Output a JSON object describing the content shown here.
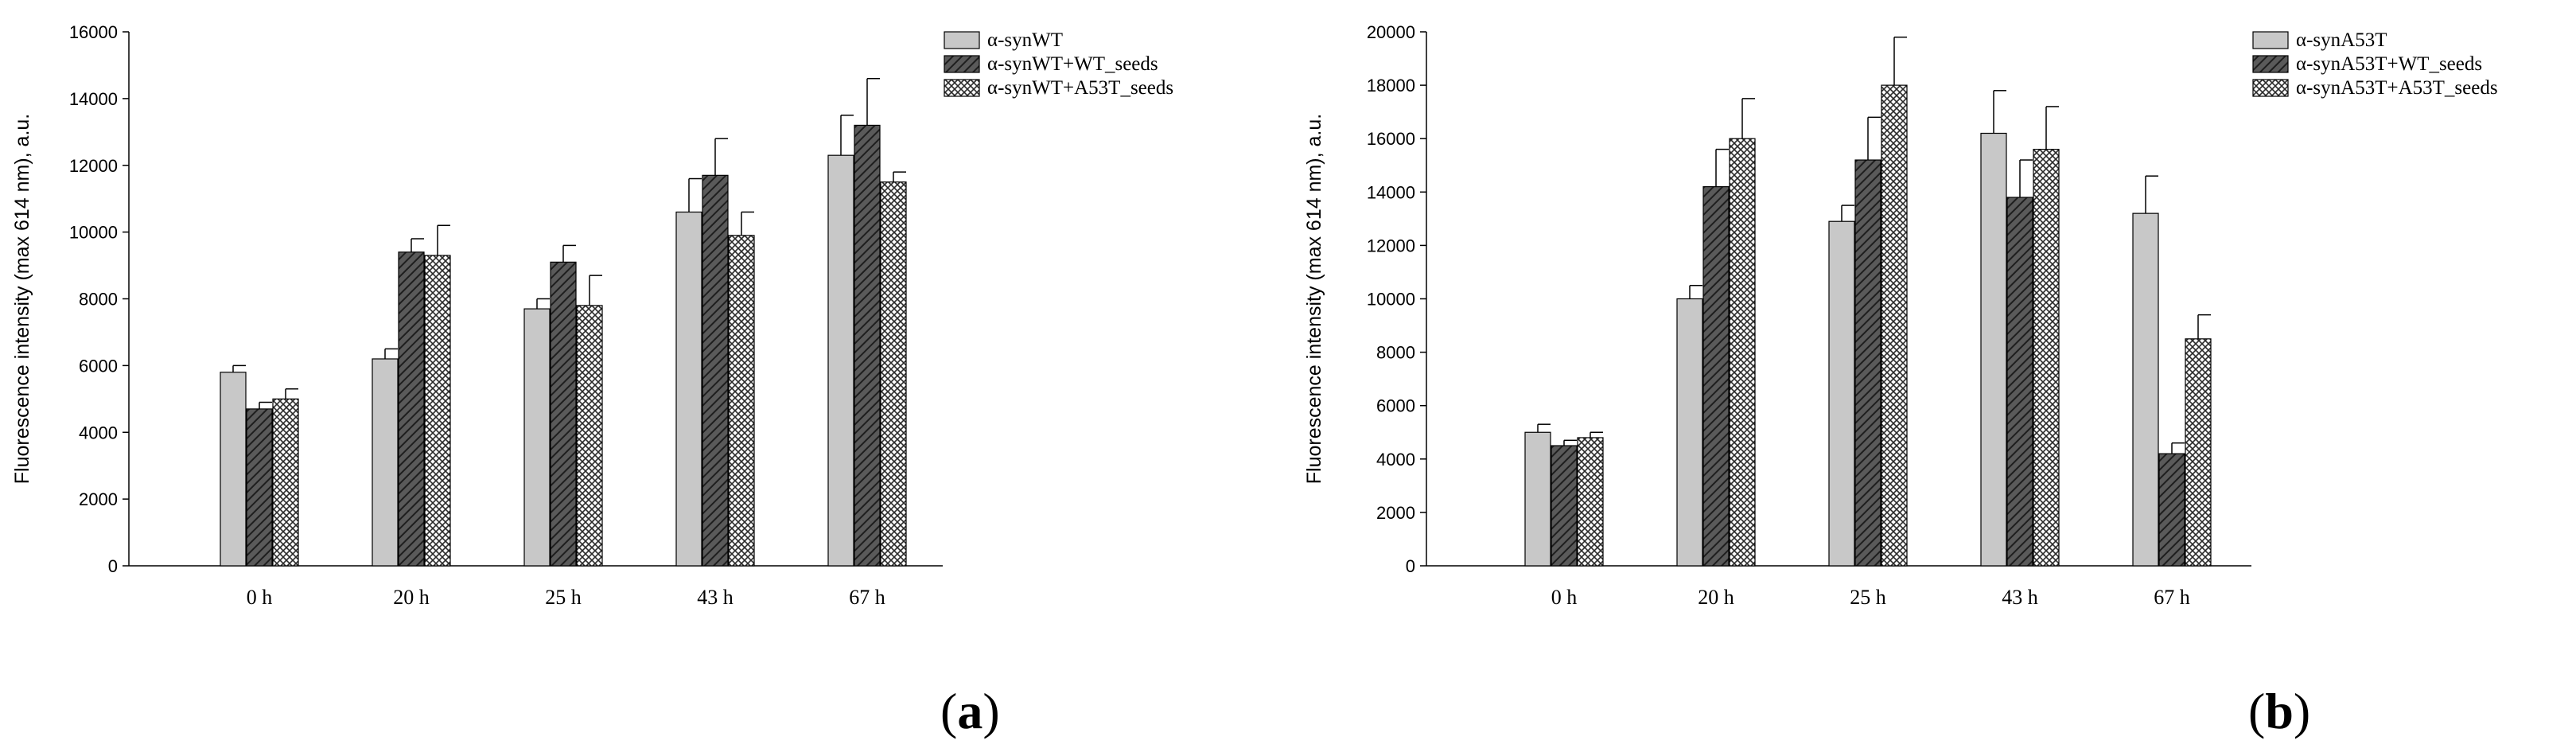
{
  "panel_labels": {
    "a_open": "(",
    "a_letter": "a",
    "a_close": ")",
    "b_open": "(",
    "b_letter": "b",
    "b_close": ")"
  },
  "chart_data": [
    {
      "type": "bar",
      "ylabel": "Fluorescence intensity (max 614 nm), a.u.",
      "xlabel": "",
      "ylim": [
        0,
        16000
      ],
      "ytick_step": 2000,
      "yticks": [
        "0",
        "2000",
        "4000",
        "6000",
        "8000",
        "10000",
        "12000",
        "14000",
        "16000"
      ],
      "categories": [
        "0 h",
        "20 h",
        "25 h",
        "43 h",
        "67 h"
      ],
      "legend_position": "top-right",
      "series": [
        {
          "name": "α-synWT",
          "pattern": "light",
          "values": [
            5800,
            6200,
            7700,
            10600,
            12300
          ],
          "errors": [
            200,
            300,
            300,
            1000,
            1200
          ]
        },
        {
          "name": "α-synWT+WT_seeds",
          "pattern": "hatch",
          "values": [
            4700,
            9400,
            9100,
            11700,
            13200
          ],
          "errors": [
            200,
            400,
            500,
            1100,
            1400
          ]
        },
        {
          "name": "α-synWT+A53T_seeds",
          "pattern": "cross",
          "values": [
            5000,
            9300,
            7800,
            9900,
            11500
          ],
          "errors": [
            300,
            900,
            900,
            700,
            300
          ]
        }
      ]
    },
    {
      "type": "bar",
      "ylabel": "Fluorescence intensity (max 614 nm), a.u.",
      "xlabel": "",
      "ylim": [
        0,
        20000
      ],
      "ytick_step": 2000,
      "yticks": [
        "0",
        "2000",
        "4000",
        "6000",
        "8000",
        "10000",
        "12000",
        "14000",
        "16000",
        "18000",
        "20000"
      ],
      "categories": [
        "0 h",
        "20 h",
        "25 h",
        "43 h",
        "67 h"
      ],
      "legend_position": "top-right",
      "series": [
        {
          "name": "α-synA53T",
          "pattern": "light",
          "values": [
            5000,
            10000,
            12900,
            16200,
            13200
          ],
          "errors": [
            300,
            500,
            600,
            1600,
            1400
          ]
        },
        {
          "name": "α-synA53T+WT_seeds",
          "pattern": "hatch",
          "values": [
            4500,
            14200,
            15200,
            13800,
            4200
          ],
          "errors": [
            200,
            1400,
            1600,
            1400,
            400
          ]
        },
        {
          "name": "α-synA53T+A53T_seeds",
          "pattern": "cross",
          "values": [
            4800,
            16000,
            18000,
            15600,
            8500
          ],
          "errors": [
            200,
            1500,
            1800,
            1600,
            900
          ]
        }
      ]
    }
  ]
}
